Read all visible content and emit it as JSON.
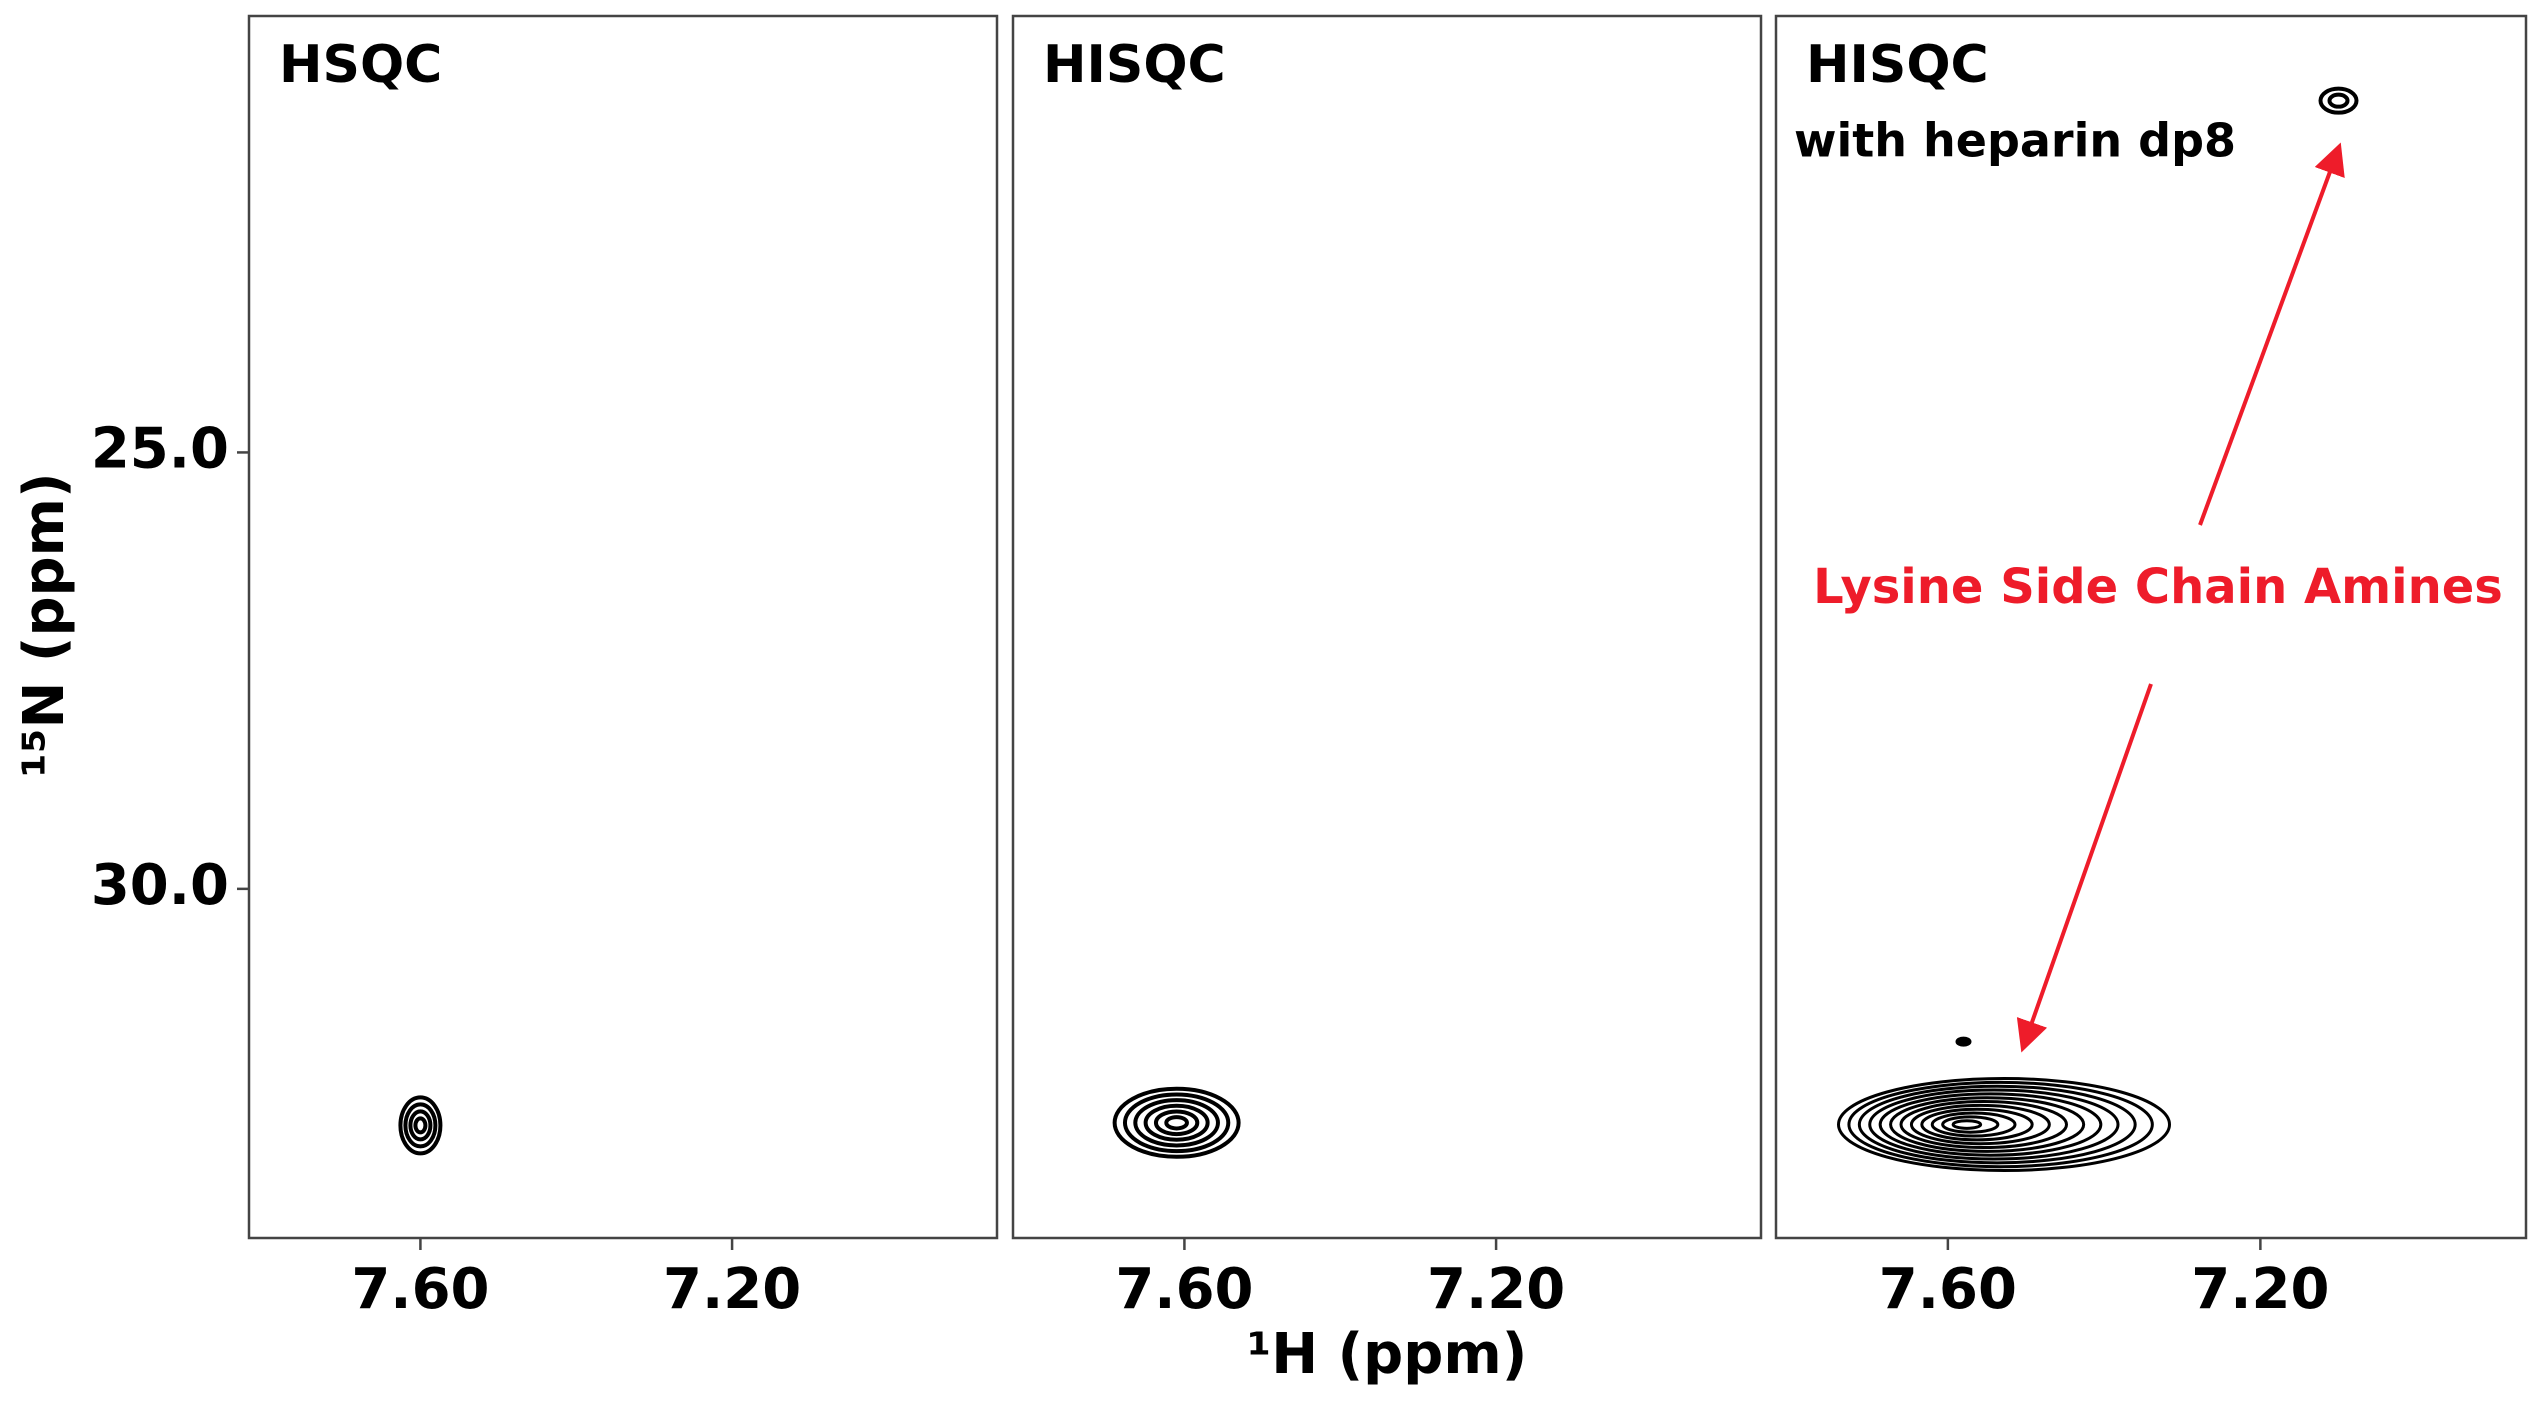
{
  "chart_data": [
    {
      "type": "contour",
      "title": "HSQC",
      "ylabel": "¹⁵N (ppm)",
      "x": [
        7.6
      ],
      "y": [
        32.71
      ],
      "xlim": [
        7.82,
        6.86
      ],
      "ylim": [
        34.0,
        20.0
      ],
      "xticks": [
        {
          "value": 7.6,
          "label": "7.60"
        },
        {
          "value": 7.2,
          "label": "7.20"
        }
      ],
      "yticks": [
        {
          "value": 25,
          "label": "25.0"
        },
        {
          "value": 30,
          "label": "30.0"
        }
      ],
      "color": "#000000"
    },
    {
      "type": "contour",
      "title": "HISQC",
      "xlabel": "¹H (ppm)",
      "x": [
        7.61
      ],
      "y": [
        32.68
      ],
      "xlim": [
        7.82,
        6.86
      ],
      "ylim": [
        34.0,
        20.0
      ],
      "xticks": [
        {
          "value": 7.6,
          "label": "7.60"
        },
        {
          "value": 7.2,
          "label": "7.20"
        }
      ],
      "color": "#000000"
    },
    {
      "type": "contour",
      "title": "HISQC",
      "subtitle": "with heparin dp8",
      "x": [
        7.58,
        7.1,
        7.58
      ],
      "y": [
        32.7,
        20.97,
        31.75
      ],
      "xlim": [
        7.82,
        6.86
      ],
      "ylim": [
        34.0,
        20.0
      ],
      "xticks": [
        {
          "value": 7.6,
          "label": "7.60"
        },
        {
          "value": 7.2,
          "label": "7.20"
        }
      ],
      "annotation": {
        "text": "Lysine Side Chain Amines",
        "color": "#ee1c2a"
      },
      "color": "#000000"
    }
  ]
}
